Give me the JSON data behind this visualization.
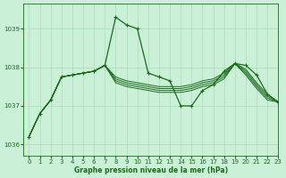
{
  "title": "Graphe pression niveau de la mer (hPa)",
  "background_color": "#caf0d8",
  "grid_color": "#b0ddc0",
  "line_color_dark": "#1a6b1a",
  "xlim": [
    -0.5,
    23
  ],
  "ylim": [
    1035.7,
    1039.65
  ],
  "yticks": [
    1036,
    1037,
    1038,
    1039
  ],
  "xticks": [
    0,
    1,
    2,
    3,
    4,
    5,
    6,
    7,
    8,
    9,
    10,
    11,
    12,
    13,
    14,
    15,
    16,
    17,
    18,
    19,
    20,
    21,
    22,
    23
  ],
  "series_main": [
    1036.2,
    1036.8,
    1037.15,
    1037.75,
    1037.8,
    1037.85,
    1037.9,
    1038.05,
    1039.3,
    1039.1,
    1039.0,
    1037.85,
    1037.75,
    1037.65,
    1037.0,
    1037.0,
    1037.4,
    1037.55,
    1037.9,
    1038.1,
    1038.05,
    1037.8,
    1037.3,
    1037.1
  ],
  "series_b": [
    1036.2,
    1036.8,
    1037.15,
    1037.75,
    1037.8,
    1037.85,
    1037.9,
    1038.05,
    1037.75,
    1037.65,
    1037.6,
    1037.55,
    1037.5,
    1037.5,
    1037.5,
    1037.55,
    1037.65,
    1037.7,
    1037.85,
    1038.1,
    1037.95,
    1037.6,
    1037.3,
    1037.1
  ],
  "series_c": [
    1036.2,
    1036.8,
    1037.15,
    1037.75,
    1037.8,
    1037.85,
    1037.9,
    1038.05,
    1037.7,
    1037.6,
    1037.55,
    1037.5,
    1037.45,
    1037.45,
    1037.45,
    1037.5,
    1037.6,
    1037.65,
    1037.8,
    1038.1,
    1037.9,
    1037.55,
    1037.25,
    1037.1
  ],
  "series_d": [
    1036.2,
    1036.8,
    1037.15,
    1037.75,
    1037.8,
    1037.85,
    1037.9,
    1038.05,
    1037.65,
    1037.55,
    1037.5,
    1037.45,
    1037.4,
    1037.4,
    1037.4,
    1037.45,
    1037.55,
    1037.6,
    1037.75,
    1038.1,
    1037.85,
    1037.5,
    1037.2,
    1037.1
  ],
  "series_e": [
    1036.2,
    1036.8,
    1037.15,
    1037.75,
    1037.8,
    1037.85,
    1037.9,
    1038.05,
    1037.6,
    1037.5,
    1037.45,
    1037.4,
    1037.35,
    1037.35,
    1037.35,
    1037.4,
    1037.5,
    1037.55,
    1037.7,
    1038.1,
    1037.8,
    1037.45,
    1037.15,
    1037.1
  ]
}
